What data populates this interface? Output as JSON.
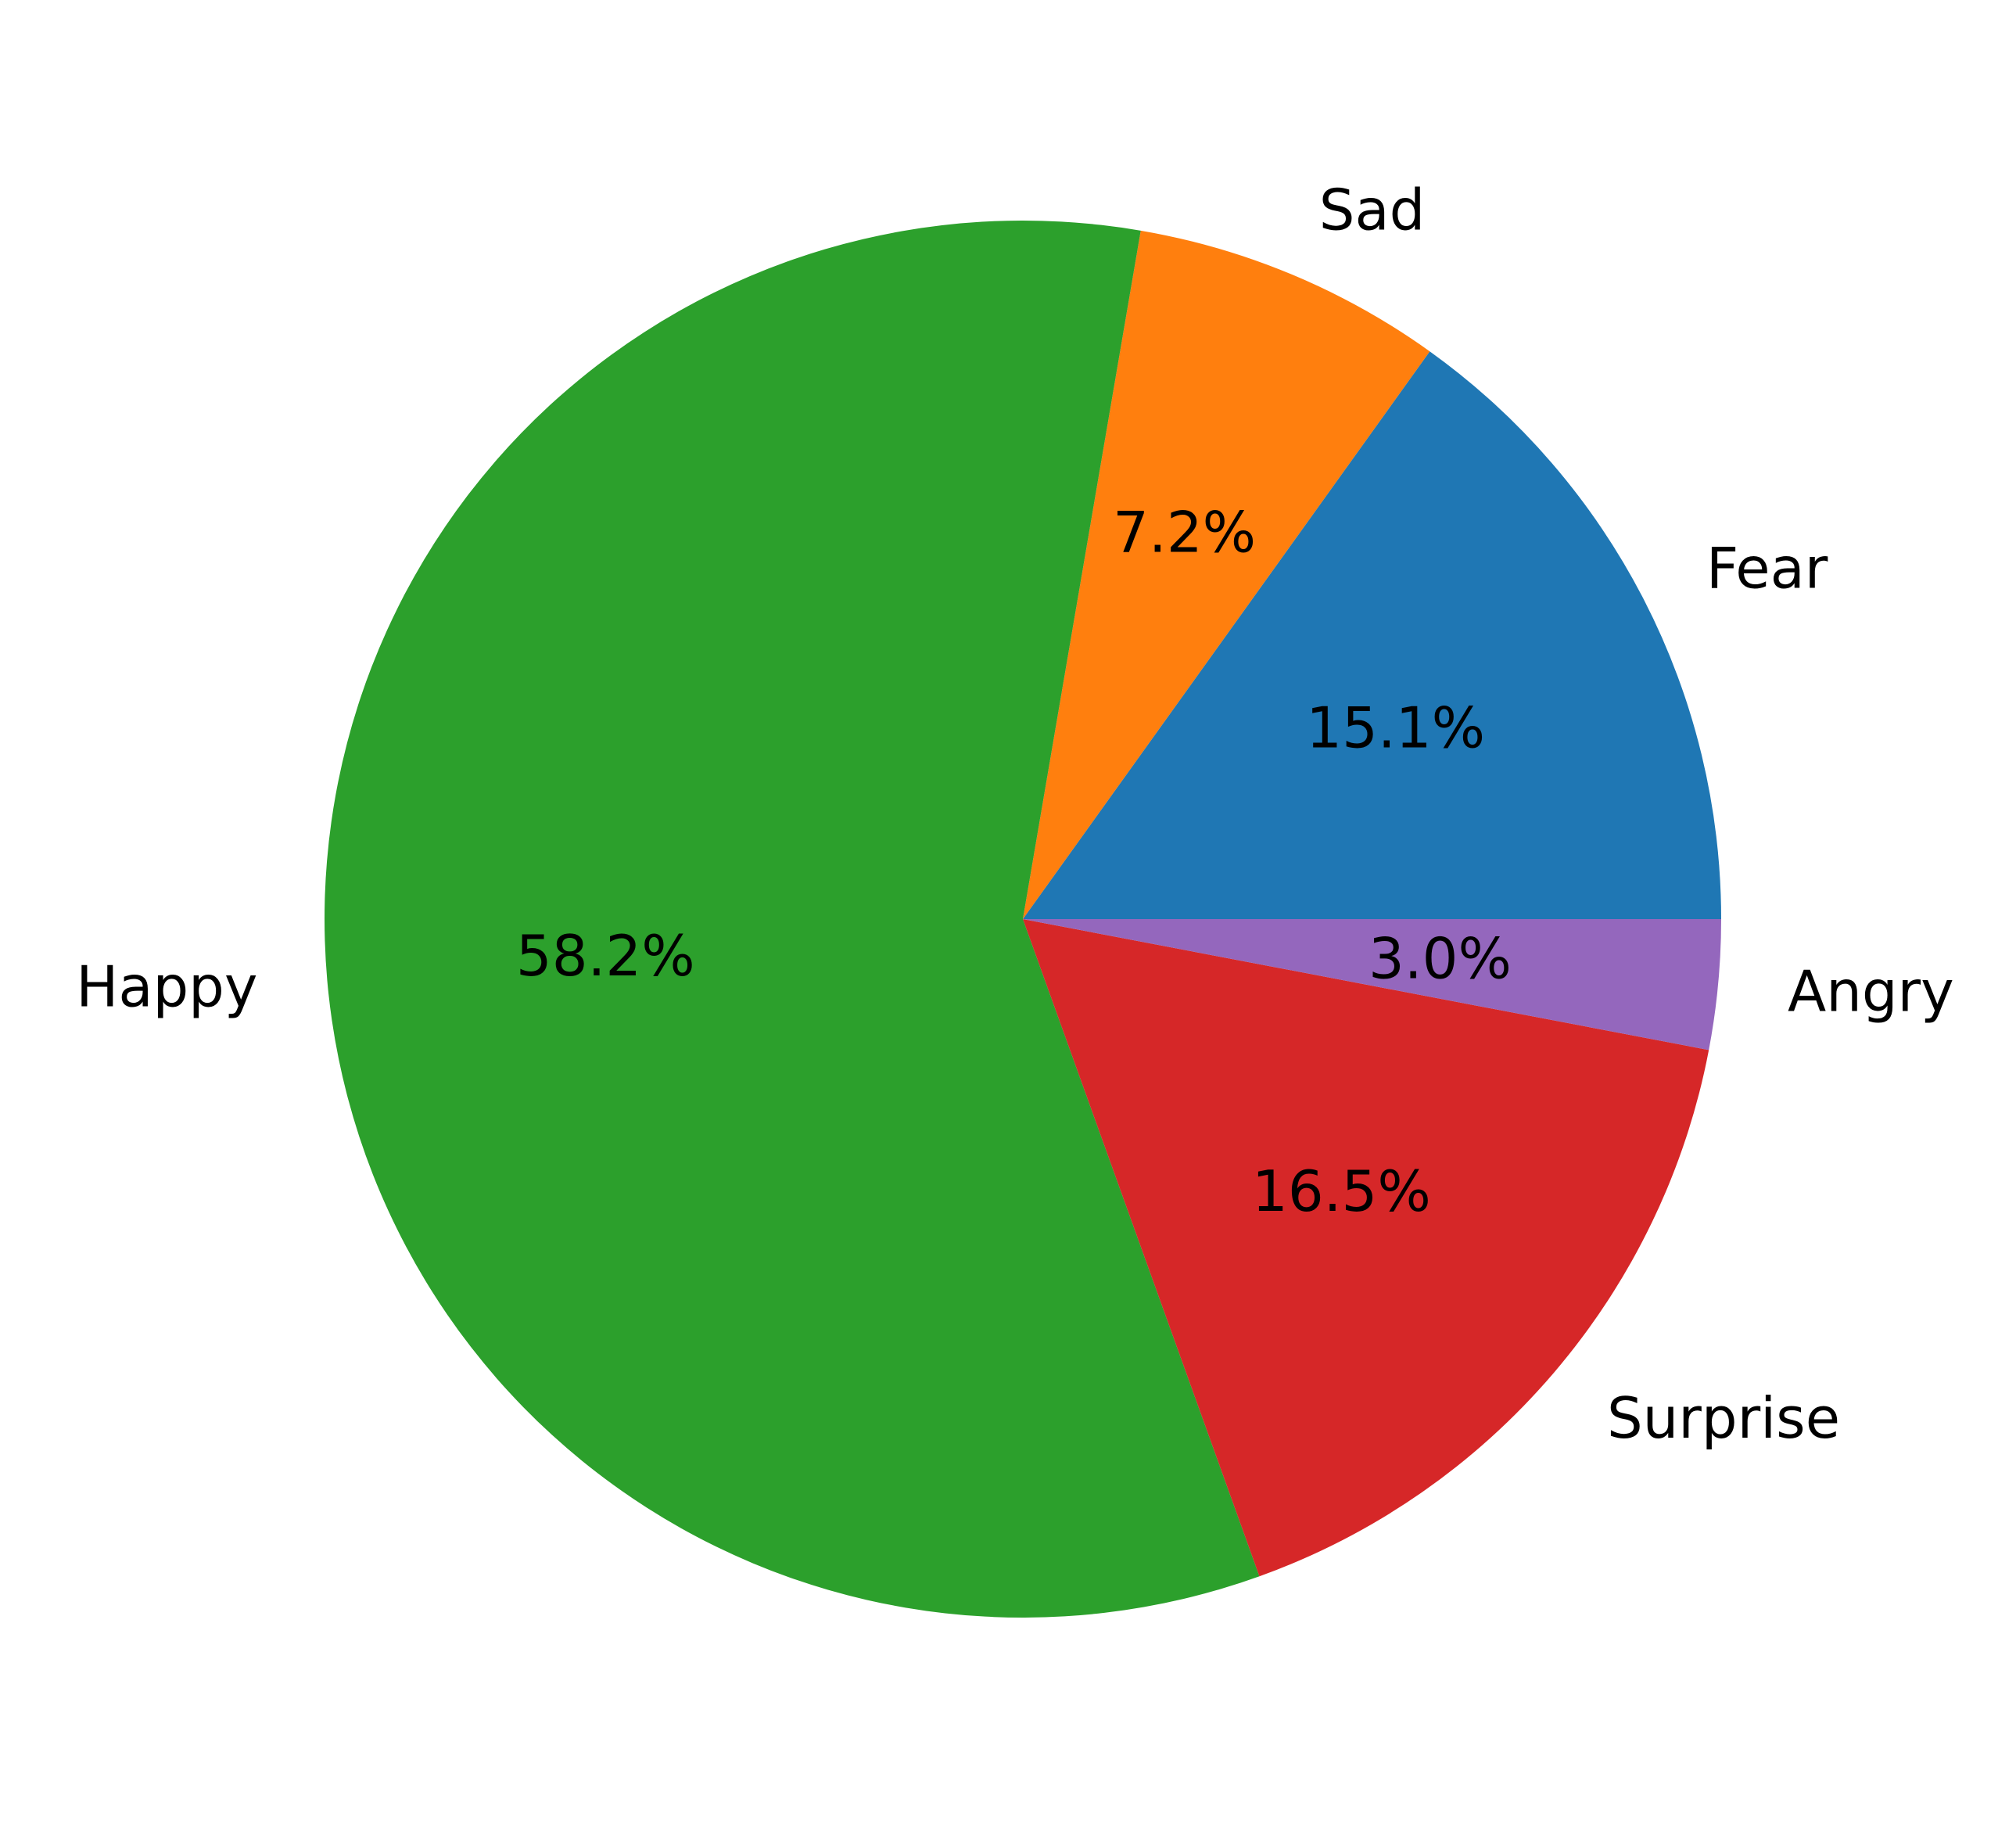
{
  "chart_data": {
    "type": "pie",
    "title": "",
    "slices": [
      {
        "label": "Fear",
        "value": 15.1,
        "pct_label": "15.1%",
        "color": "#1f77b4"
      },
      {
        "label": "Sad",
        "value": 7.2,
        "pct_label": "7.2%",
        "color": "#ff7f0e"
      },
      {
        "label": "Happy",
        "value": 58.2,
        "pct_label": "58.2%",
        "color": "#2ca02c"
      },
      {
        "label": "Surprise",
        "value": 16.5,
        "pct_label": "16.5%",
        "color": "#d62728"
      },
      {
        "label": "Angry",
        "value": 3.0,
        "pct_label": "3.0%",
        "color": "#9467bd"
      }
    ],
    "start_angle_deg": 0,
    "direction": "counterclockwise",
    "legend": "none"
  }
}
